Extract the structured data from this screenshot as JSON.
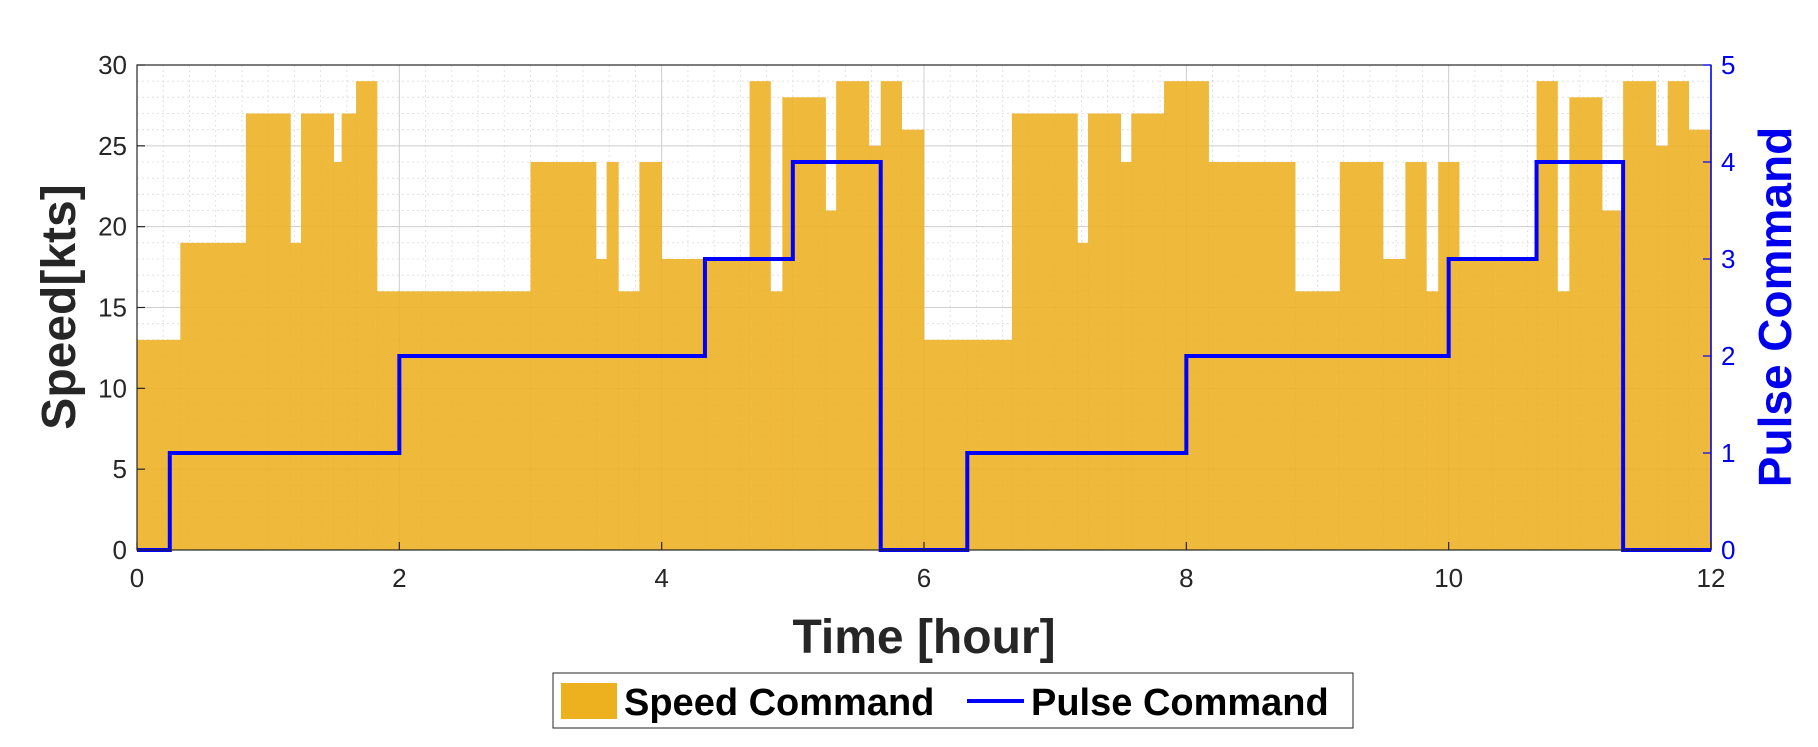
{
  "chart_data": {
    "type": "bar",
    "xlabel": "Time [hour]",
    "ylabel_left": "Speed[kts]",
    "ylabel_right": "Pulse Command",
    "xlim": [
      0,
      12
    ],
    "ylim_left": [
      0,
      30
    ],
    "ylim_right": [
      0,
      5
    ],
    "xticks": [
      "0",
      "2",
      "4",
      "6",
      "8",
      "10",
      "12"
    ],
    "yticks_left": [
      "0",
      "5",
      "10",
      "15",
      "20",
      "25",
      "30"
    ],
    "yticks_right": [
      "0",
      "1",
      "2",
      "3",
      "4",
      "5"
    ],
    "grid": true,
    "minor_grid": true,
    "legend_position": "bottom-center",
    "series": [
      {
        "name": "Speed Command",
        "kind": "bar-step",
        "color": "#EDB120",
        "x_start": [
          0,
          0.33,
          0.83,
          1.17,
          1.25,
          1.5,
          1.56,
          1.67,
          1.83,
          2.17,
          3.0,
          3.5,
          3.58,
          3.67,
          3.83,
          4.0,
          4.33,
          4.67,
          4.83,
          4.92,
          5.0,
          5.25,
          5.33,
          5.58,
          5.67,
          5.83,
          6.0,
          6.33,
          6.67,
          7.17,
          7.25,
          7.5,
          7.58,
          7.83,
          8.17,
          8.83,
          9.17,
          9.5,
          9.67,
          9.83,
          9.92,
          10.08,
          10.33,
          10.67,
          10.83,
          10.92,
          11.17,
          11.33,
          11.58,
          11.67,
          11.83
        ],
        "values": [
          13,
          19,
          27,
          19,
          27,
          24,
          27,
          29,
          16,
          16,
          24,
          18,
          24,
          16,
          24,
          18,
          18,
          29,
          16,
          28,
          28,
          21,
          29,
          25,
          29,
          26,
          13,
          13,
          27,
          19,
          27,
          24,
          27,
          29,
          24,
          16,
          24,
          18,
          24,
          16,
          24,
          18,
          18,
          29,
          16,
          28,
          21,
          29,
          25,
          29,
          26
        ]
      },
      {
        "name": "Pulse Command",
        "kind": "step-line",
        "color": "#0000FF",
        "x_breaks": [
          0,
          0.25,
          2.0,
          4.33,
          5.0,
          5.67,
          6.33,
          8.0,
          10.0,
          10.67,
          11.33,
          12
        ],
        "values": [
          0,
          1,
          2,
          3,
          4,
          0,
          1,
          2,
          3,
          4,
          0
        ]
      }
    ]
  }
}
